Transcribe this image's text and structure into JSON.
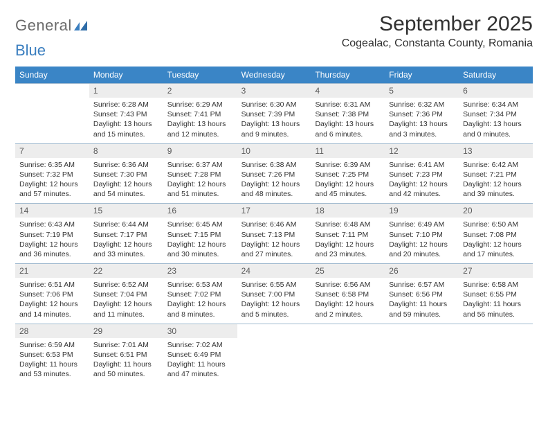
{
  "brand": {
    "part1": "General",
    "part2": "Blue"
  },
  "colors": {
    "header_bar": "#3a85c6",
    "daynum_bg": "#ededed",
    "week_border": "#9fb9cf",
    "text": "#333333",
    "logo_gray": "#6a6a6a",
    "logo_blue": "#3a7ebf"
  },
  "title": "September 2025",
  "location": "Cogealac, Constanta County, Romania",
  "days_of_week": [
    "Sunday",
    "Monday",
    "Tuesday",
    "Wednesday",
    "Thursday",
    "Friday",
    "Saturday"
  ],
  "weeks": [
    [
      {
        "n": "",
        "sunrise": "",
        "sunset": "",
        "daylight": ""
      },
      {
        "n": "1",
        "sunrise": "Sunrise: 6:28 AM",
        "sunset": "Sunset: 7:43 PM",
        "daylight": "Daylight: 13 hours and 15 minutes."
      },
      {
        "n": "2",
        "sunrise": "Sunrise: 6:29 AM",
        "sunset": "Sunset: 7:41 PM",
        "daylight": "Daylight: 13 hours and 12 minutes."
      },
      {
        "n": "3",
        "sunrise": "Sunrise: 6:30 AM",
        "sunset": "Sunset: 7:39 PM",
        "daylight": "Daylight: 13 hours and 9 minutes."
      },
      {
        "n": "4",
        "sunrise": "Sunrise: 6:31 AM",
        "sunset": "Sunset: 7:38 PM",
        "daylight": "Daylight: 13 hours and 6 minutes."
      },
      {
        "n": "5",
        "sunrise": "Sunrise: 6:32 AM",
        "sunset": "Sunset: 7:36 PM",
        "daylight": "Daylight: 13 hours and 3 minutes."
      },
      {
        "n": "6",
        "sunrise": "Sunrise: 6:34 AM",
        "sunset": "Sunset: 7:34 PM",
        "daylight": "Daylight: 13 hours and 0 minutes."
      }
    ],
    [
      {
        "n": "7",
        "sunrise": "Sunrise: 6:35 AM",
        "sunset": "Sunset: 7:32 PM",
        "daylight": "Daylight: 12 hours and 57 minutes."
      },
      {
        "n": "8",
        "sunrise": "Sunrise: 6:36 AM",
        "sunset": "Sunset: 7:30 PM",
        "daylight": "Daylight: 12 hours and 54 minutes."
      },
      {
        "n": "9",
        "sunrise": "Sunrise: 6:37 AM",
        "sunset": "Sunset: 7:28 PM",
        "daylight": "Daylight: 12 hours and 51 minutes."
      },
      {
        "n": "10",
        "sunrise": "Sunrise: 6:38 AM",
        "sunset": "Sunset: 7:26 PM",
        "daylight": "Daylight: 12 hours and 48 minutes."
      },
      {
        "n": "11",
        "sunrise": "Sunrise: 6:39 AM",
        "sunset": "Sunset: 7:25 PM",
        "daylight": "Daylight: 12 hours and 45 minutes."
      },
      {
        "n": "12",
        "sunrise": "Sunrise: 6:41 AM",
        "sunset": "Sunset: 7:23 PM",
        "daylight": "Daylight: 12 hours and 42 minutes."
      },
      {
        "n": "13",
        "sunrise": "Sunrise: 6:42 AM",
        "sunset": "Sunset: 7:21 PM",
        "daylight": "Daylight: 12 hours and 39 minutes."
      }
    ],
    [
      {
        "n": "14",
        "sunrise": "Sunrise: 6:43 AM",
        "sunset": "Sunset: 7:19 PM",
        "daylight": "Daylight: 12 hours and 36 minutes."
      },
      {
        "n": "15",
        "sunrise": "Sunrise: 6:44 AM",
        "sunset": "Sunset: 7:17 PM",
        "daylight": "Daylight: 12 hours and 33 minutes."
      },
      {
        "n": "16",
        "sunrise": "Sunrise: 6:45 AM",
        "sunset": "Sunset: 7:15 PM",
        "daylight": "Daylight: 12 hours and 30 minutes."
      },
      {
        "n": "17",
        "sunrise": "Sunrise: 6:46 AM",
        "sunset": "Sunset: 7:13 PM",
        "daylight": "Daylight: 12 hours and 27 minutes."
      },
      {
        "n": "18",
        "sunrise": "Sunrise: 6:48 AM",
        "sunset": "Sunset: 7:11 PM",
        "daylight": "Daylight: 12 hours and 23 minutes."
      },
      {
        "n": "19",
        "sunrise": "Sunrise: 6:49 AM",
        "sunset": "Sunset: 7:10 PM",
        "daylight": "Daylight: 12 hours and 20 minutes."
      },
      {
        "n": "20",
        "sunrise": "Sunrise: 6:50 AM",
        "sunset": "Sunset: 7:08 PM",
        "daylight": "Daylight: 12 hours and 17 minutes."
      }
    ],
    [
      {
        "n": "21",
        "sunrise": "Sunrise: 6:51 AM",
        "sunset": "Sunset: 7:06 PM",
        "daylight": "Daylight: 12 hours and 14 minutes."
      },
      {
        "n": "22",
        "sunrise": "Sunrise: 6:52 AM",
        "sunset": "Sunset: 7:04 PM",
        "daylight": "Daylight: 12 hours and 11 minutes."
      },
      {
        "n": "23",
        "sunrise": "Sunrise: 6:53 AM",
        "sunset": "Sunset: 7:02 PM",
        "daylight": "Daylight: 12 hours and 8 minutes."
      },
      {
        "n": "24",
        "sunrise": "Sunrise: 6:55 AM",
        "sunset": "Sunset: 7:00 PM",
        "daylight": "Daylight: 12 hours and 5 minutes."
      },
      {
        "n": "25",
        "sunrise": "Sunrise: 6:56 AM",
        "sunset": "Sunset: 6:58 PM",
        "daylight": "Daylight: 12 hours and 2 minutes."
      },
      {
        "n": "26",
        "sunrise": "Sunrise: 6:57 AM",
        "sunset": "Sunset: 6:56 PM",
        "daylight": "Daylight: 11 hours and 59 minutes."
      },
      {
        "n": "27",
        "sunrise": "Sunrise: 6:58 AM",
        "sunset": "Sunset: 6:55 PM",
        "daylight": "Daylight: 11 hours and 56 minutes."
      }
    ],
    [
      {
        "n": "28",
        "sunrise": "Sunrise: 6:59 AM",
        "sunset": "Sunset: 6:53 PM",
        "daylight": "Daylight: 11 hours and 53 minutes."
      },
      {
        "n": "29",
        "sunrise": "Sunrise: 7:01 AM",
        "sunset": "Sunset: 6:51 PM",
        "daylight": "Daylight: 11 hours and 50 minutes."
      },
      {
        "n": "30",
        "sunrise": "Sunrise: 7:02 AM",
        "sunset": "Sunset: 6:49 PM",
        "daylight": "Daylight: 11 hours and 47 minutes."
      },
      {
        "n": "",
        "sunrise": "",
        "sunset": "",
        "daylight": ""
      },
      {
        "n": "",
        "sunrise": "",
        "sunset": "",
        "daylight": ""
      },
      {
        "n": "",
        "sunrise": "",
        "sunset": "",
        "daylight": ""
      },
      {
        "n": "",
        "sunrise": "",
        "sunset": "",
        "daylight": ""
      }
    ]
  ]
}
